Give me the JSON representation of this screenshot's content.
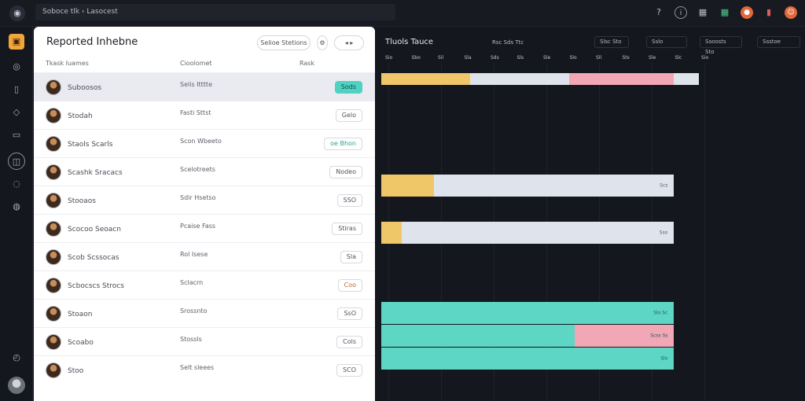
{
  "topbar": {
    "breadcrumb": "Soboce tlk  ›  Lasocest",
    "icons": [
      "help-icon",
      "info-icon",
      "grid-icon",
      "notification-icon",
      "alert-icon",
      "avatar-icon"
    ]
  },
  "rail": {
    "icons": [
      "app-icon",
      "home-icon",
      "files-icon",
      "tag-icon",
      "calendar-icon",
      "group-icon",
      "users-icon",
      "settings-icon"
    ]
  },
  "panel": {
    "title": "Reported Inhebne",
    "actions": [
      "Selioe Stetions",
      "Settings",
      "More"
    ],
    "columns": [
      "Tkask Iuames",
      "Cioolomet",
      "Rask"
    ],
    "rows": [
      {
        "name": "Suboosos",
        "type": "Selis Itttte",
        "pill": "Sods",
        "style": "teal"
      },
      {
        "name": "Stodah",
        "type": "Fasti Sttst",
        "pill": "Gelo",
        "style": ""
      },
      {
        "name": "Staols Scarls",
        "type": "Scon Wbeeto",
        "pill": "oe Bhon",
        "style": "green"
      },
      {
        "name": "Scashk Sracacs",
        "type": "Scelotreets",
        "pill": "Nodeo",
        "style": ""
      },
      {
        "name": "Stooaos",
        "type": "Sdir Hsetso",
        "pill": "SSO",
        "style": ""
      },
      {
        "name": "Scocoo Seoacn",
        "type": "Pcaise Fass",
        "pill": "Stiras",
        "style": ""
      },
      {
        "name": "Scob Scssocas",
        "type": "Rol Isese",
        "pill": "Sla",
        "style": ""
      },
      {
        "name": "Scbocscs Strocs",
        "type": "Sclacrn",
        "pill": "Coo",
        "style": "warm"
      },
      {
        "name": "Stoaon",
        "type": "Srossnto",
        "pill": "SsO",
        "style": ""
      },
      {
        "name": "Scoabo",
        "type": "Stossls",
        "pill": "Cols",
        "style": ""
      },
      {
        "name": "Stoo",
        "type": "Selt sleees",
        "pill": "SCO",
        "style": ""
      }
    ]
  },
  "timeline": {
    "title": "Tluols Tauce",
    "header_labels": [
      "Rsc Sds Ttc",
      "Slsc Sto",
      "Sslo",
      "Ssoosts Sto",
      "Ssstoe"
    ],
    "ticks": [
      "Sio",
      "Sbo",
      "Sil",
      "Sla",
      "Sds",
      "Sls",
      "Sle",
      "Slo",
      "Sll",
      "Sts",
      "Sle",
      "Slc",
      "Sio"
    ],
    "bars": [
      {
        "label": "",
        "segments": [
          {
            "value": 0.28,
            "color": "#f0c768"
          },
          {
            "value": 0.31,
            "color": "#dfe4ec"
          },
          {
            "value": 0.33,
            "color": "#f2a7b6"
          },
          {
            "value": 0.08,
            "color": "#dfe4ec"
          }
        ],
        "length": 0.76
      },
      {
        "label": "Scs",
        "segments": [
          {
            "value": 0.18,
            "color": "#f0c768"
          },
          {
            "value": 0.82,
            "color": "#dfe4ec"
          }
        ],
        "length": 0.7
      },
      {
        "label": "Sso",
        "segments": [
          {
            "value": 0.07,
            "color": "#f0c768"
          },
          {
            "value": 0.93,
            "color": "#dfe4ec"
          }
        ],
        "length": 0.7
      },
      {
        "label": "Slo Sc",
        "segments": [
          {
            "value": 1.0,
            "color": "#5dd6c6"
          }
        ],
        "length": 0.7
      },
      {
        "label": "Scss Ss",
        "segments": [
          {
            "value": 0.66,
            "color": "#5dd6c6"
          },
          {
            "value": 0.34,
            "color": "#f2a7b6"
          }
        ],
        "length": 0.7
      },
      {
        "label": "Slo",
        "segments": [
          {
            "value": 1.0,
            "color": "#5dd6c6"
          }
        ],
        "length": 0.7
      }
    ]
  }
}
